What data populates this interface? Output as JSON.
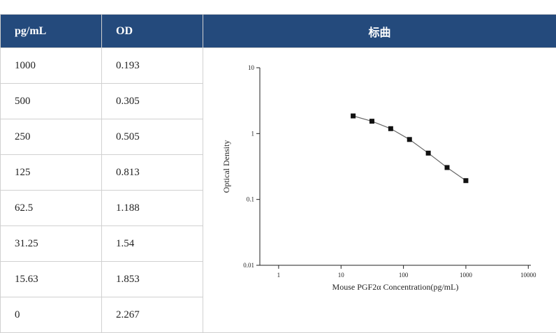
{
  "table": {
    "header": [
      "pg/mL",
      "OD",
      "标曲"
    ],
    "rows": [
      [
        "1000",
        "0.193"
      ],
      [
        "500",
        "0.305"
      ],
      [
        "250",
        "0.505"
      ],
      [
        "125",
        "0.813"
      ],
      [
        "62.5",
        "1.188"
      ],
      [
        "31.25",
        "1.54"
      ],
      [
        "15.63",
        "1.853"
      ],
      [
        "0",
        "2.267"
      ]
    ]
  },
  "chart_data": {
    "type": "scatter-line",
    "x_label": "Mouse PGF2α Concentration(pg/mL)",
    "y_label": "Optical Density",
    "x": [
      15.63,
      31.25,
      62.5,
      125,
      250,
      500,
      1000
    ],
    "values": [
      1.853,
      1.54,
      1.188,
      0.813,
      0.505,
      0.305,
      0.193
    ],
    "color": "#111111",
    "line_color": "#666666",
    "log_x": true,
    "log_y": true,
    "xlim": [
      0.5,
      11000
    ],
    "xticks": [
      1,
      10,
      100,
      1000,
      10000
    ],
    "ylim": [
      0.01,
      10
    ],
    "yticks": [
      0.01,
      0.1,
      1,
      10
    ]
  }
}
